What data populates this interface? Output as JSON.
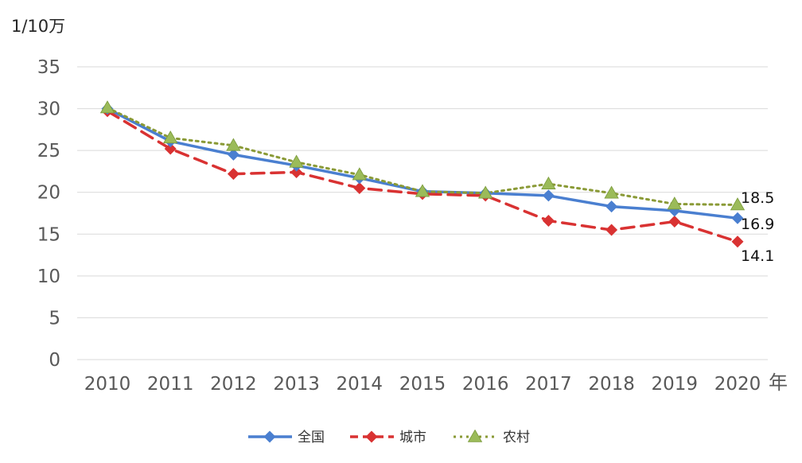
{
  "chart_data": {
    "type": "line",
    "y_unit_label": "1/10万",
    "x_unit_label": "年",
    "categories": [
      "2010",
      "2011",
      "2012",
      "2013",
      "2014",
      "2015",
      "2016",
      "2017",
      "2018",
      "2019",
      "2020"
    ],
    "ylim": [
      0,
      35
    ],
    "yticks": [
      "0",
      "5",
      "10",
      "15",
      "20",
      "25",
      "30",
      "35"
    ],
    "grid": true,
    "legend_position": "bottom",
    "series": [
      {
        "name": "全国",
        "color": "#4a7fd0",
        "style": "solid",
        "marker": "diamond",
        "values": [
          30.0,
          26.1,
          24.5,
          23.2,
          21.7,
          20.1,
          19.9,
          19.6,
          18.3,
          17.8,
          16.9
        ]
      },
      {
        "name": "城市",
        "color": "#d93232",
        "style": "dashed",
        "marker": "diamond",
        "values": [
          29.7,
          25.2,
          22.2,
          22.4,
          20.5,
          19.8,
          19.6,
          16.6,
          15.5,
          16.5,
          14.1
        ]
      },
      {
        "name": "农村",
        "color": "#8a9a36",
        "marker_color": "#9bbb59",
        "style": "dotted",
        "marker": "triangle",
        "values": [
          30.1,
          26.5,
          25.6,
          23.6,
          22.1,
          20.1,
          19.9,
          21.0,
          19.9,
          18.6,
          18.5
        ]
      }
    ],
    "annotations": [
      {
        "text": "18.5",
        "series": "农村",
        "x": "2020"
      },
      {
        "text": "16.9",
        "series": "全国",
        "x": "2020"
      },
      {
        "text": "14.1",
        "series": "城市",
        "x": "2020"
      }
    ]
  }
}
